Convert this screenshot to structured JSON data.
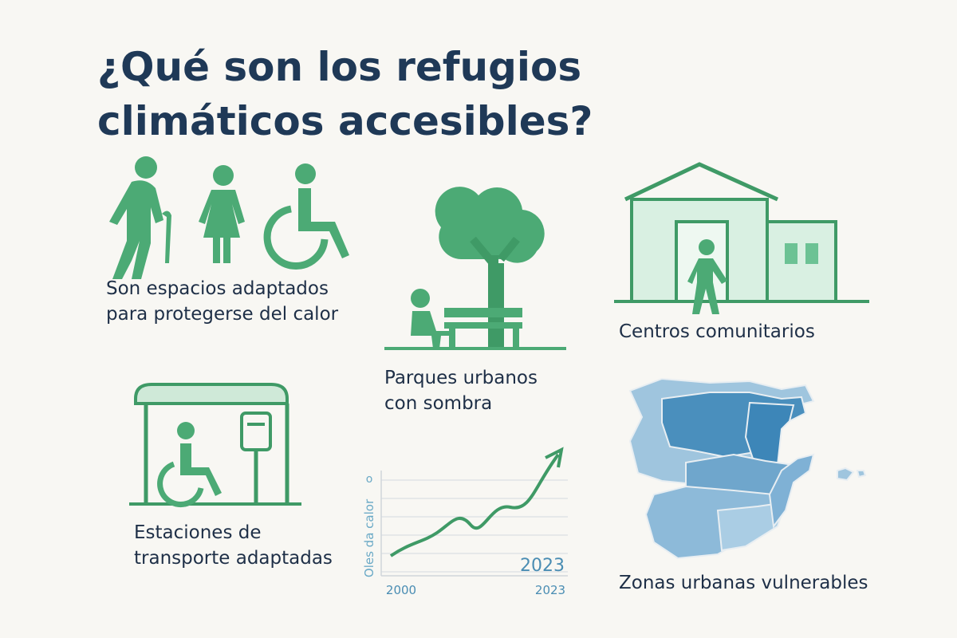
{
  "title": "¿Qué son los refugios climáticos accesibles?",
  "items": [
    {
      "label": "Son espacios adaptados para protegerse del calor"
    },
    {
      "label": "Parques urbanos con sombra"
    },
    {
      "label": "Centros comunitarios"
    },
    {
      "label": "Estaciones de transporte adaptadas"
    },
    {
      "label": "Zonas urbanas vulnerables"
    }
  ],
  "trend": {
    "y_label": "Oles da calor",
    "y_top_label": "o",
    "x_start": "2000",
    "x_end": "2023",
    "annotation": "2023"
  }
}
